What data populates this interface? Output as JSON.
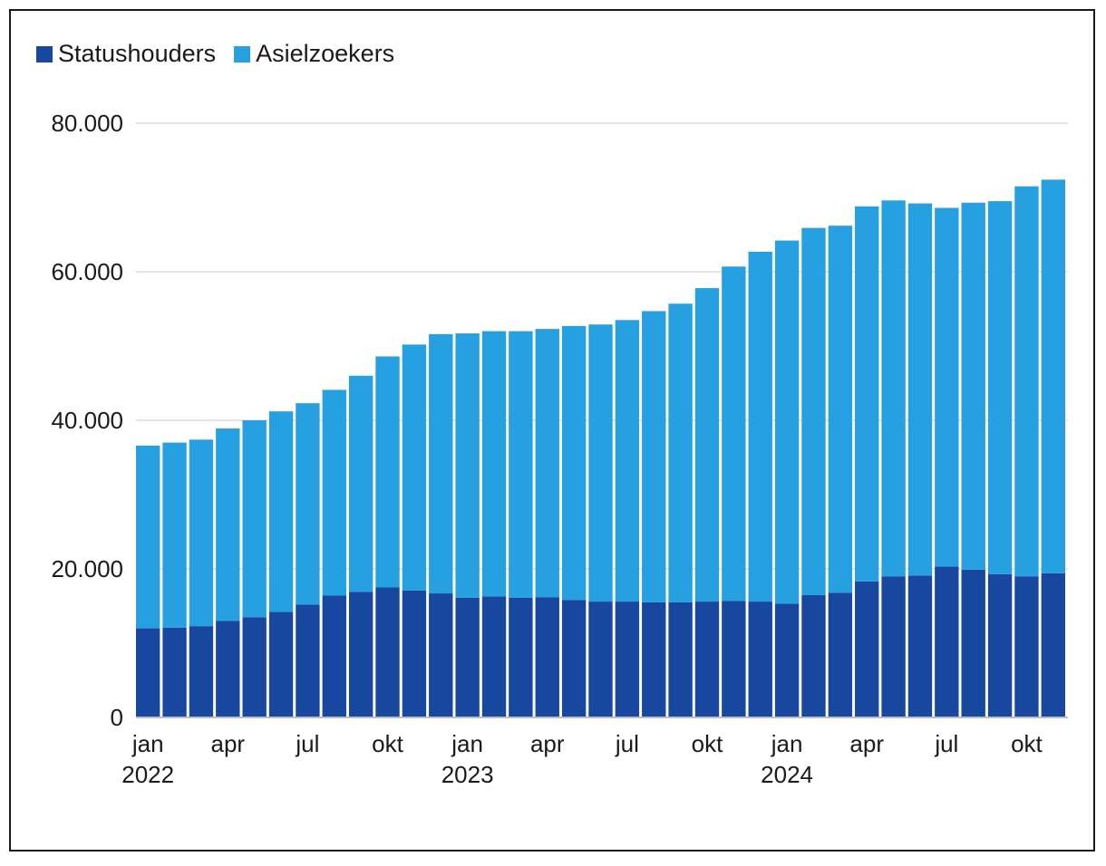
{
  "chart_data": {
    "type": "bar",
    "stacked": true,
    "title": "",
    "xlabel": "",
    "ylabel": "",
    "ylim": [
      0,
      80000
    ],
    "yticks": [
      0,
      20000,
      40000,
      60000,
      80000
    ],
    "ytick_labels": [
      "0",
      "20.000",
      "40.000",
      "60.000",
      "80.000"
    ],
    "grid": true,
    "legend_position": "top-left",
    "categories": [
      "2022-01",
      "2022-02",
      "2022-03",
      "2022-04",
      "2022-05",
      "2022-06",
      "2022-07",
      "2022-08",
      "2022-09",
      "2022-10",
      "2022-11",
      "2022-12",
      "2023-01",
      "2023-02",
      "2023-03",
      "2023-04",
      "2023-05",
      "2023-06",
      "2023-07",
      "2023-08",
      "2023-09",
      "2023-10",
      "2023-11",
      "2023-12",
      "2024-01",
      "2024-02",
      "2024-03",
      "2024-04",
      "2024-05",
      "2024-06",
      "2024-07",
      "2024-08",
      "2024-09",
      "2024-10",
      "2024-11"
    ],
    "x_tick_labels": [
      {
        "index": 0,
        "month": "jan",
        "year": "2022"
      },
      {
        "index": 3,
        "month": "apr",
        "year": ""
      },
      {
        "index": 6,
        "month": "jul",
        "year": ""
      },
      {
        "index": 9,
        "month": "okt",
        "year": ""
      },
      {
        "index": 12,
        "month": "jan",
        "year": "2023"
      },
      {
        "index": 15,
        "month": "apr",
        "year": ""
      },
      {
        "index": 18,
        "month": "jul",
        "year": ""
      },
      {
        "index": 21,
        "month": "okt",
        "year": ""
      },
      {
        "index": 24,
        "month": "jan",
        "year": "2024"
      },
      {
        "index": 27,
        "month": "apr",
        "year": ""
      },
      {
        "index": 30,
        "month": "jul",
        "year": ""
      },
      {
        "index": 33,
        "month": "okt",
        "year": ""
      }
    ],
    "series": [
      {
        "name": "Statushouders",
        "color": "#17479e",
        "values": [
          12000,
          12100,
          12300,
          13000,
          13500,
          14200,
          15200,
          16400,
          16900,
          17500,
          17100,
          16700,
          16100,
          16300,
          16100,
          16200,
          15800,
          15600,
          15600,
          15500,
          15500,
          15600,
          15700,
          15600,
          15300,
          16500,
          16800,
          18300,
          19000,
          19100,
          20300,
          19900,
          19300,
          19000,
          19400
        ]
      },
      {
        "name": "Asielzoekers",
        "color": "#27a0e2",
        "values": [
          24600,
          24900,
          25100,
          25900,
          26500,
          27000,
          27100,
          27700,
          29100,
          31100,
          33100,
          34900,
          35600,
          35700,
          35900,
          36100,
          36900,
          37300,
          37900,
          39200,
          40200,
          42200,
          45000,
          47100,
          48900,
          49400,
          49400,
          50500,
          50600,
          50100,
          48300,
          49400,
          50200,
          52500,
          53000
        ]
      }
    ]
  }
}
